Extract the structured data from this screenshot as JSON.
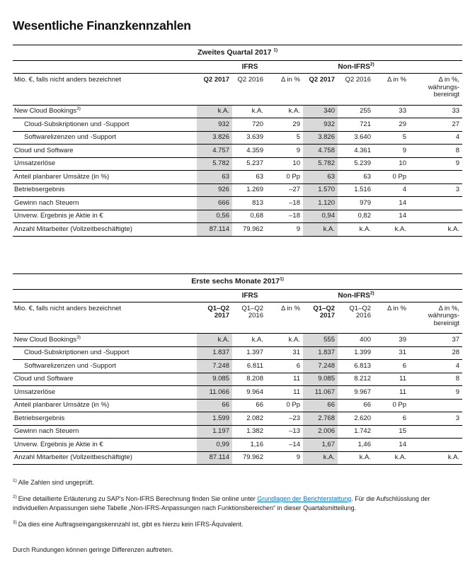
{
  "page_title": "Wesentliche Finanzkennzahlen",
  "colors": {
    "link_blue": "#0076cb",
    "shaded_column": "#d9d9d9"
  },
  "tables": [
    {
      "title": "Zweites Quartal 2017 ",
      "title_sup": "1)",
      "groups": {
        "ifrs": "IFRS",
        "non_ifrs": "Non-IFRS",
        "non_ifrs_sup": "2)"
      },
      "unit_label": "Mio. €, falls nicht anders bezeichnet",
      "columns": [
        {
          "lines": [
            "Q2 2017"
          ],
          "bold": true
        },
        {
          "lines": [
            "Q2 2016"
          ]
        },
        {
          "lines": [
            "Δ in %"
          ]
        },
        {
          "lines": [
            "Q2 2017"
          ],
          "bold": true
        },
        {
          "lines": [
            "Q2 2016"
          ]
        },
        {
          "lines": [
            "Δ in %"
          ]
        },
        {
          "lines": [
            "Δ in %,",
            "währungs-",
            "bereinigt"
          ]
        }
      ],
      "rows": [
        {
          "label": "New Cloud Bookings",
          "sup": "3)",
          "values": [
            "k.A.",
            "k.A.",
            "k.A.",
            "340",
            "255",
            "33",
            "33"
          ]
        },
        {
          "label": "Cloud-Subskriptionen und -Support",
          "indent": true,
          "values": [
            "932",
            "720",
            "29",
            "932",
            "721",
            "29",
            "27"
          ]
        },
        {
          "label": "Softwarelizenzen und -Support",
          "indent": true,
          "values": [
            "3.826",
            "3.639",
            "5",
            "3.826",
            "3.640",
            "5",
            "4"
          ]
        },
        {
          "label": "Cloud und Software",
          "values": [
            "4.757",
            "4.359",
            "9",
            "4.758",
            "4.361",
            "9",
            "8"
          ]
        },
        {
          "label": "Umsatzerlöse",
          "values": [
            "5.782",
            "5.237",
            "10",
            "5.782",
            "5.239",
            "10",
            "9"
          ]
        },
        {
          "label": "Anteil planbarer Umsätze (in %)",
          "values": [
            "63",
            "63",
            "0 Pp",
            "63",
            "63",
            "0 Pp",
            ""
          ]
        },
        {
          "label": "Betriebsergebnis",
          "values": [
            "926",
            "1.269",
            "–27",
            "1.570",
            "1.516",
            "4",
            "3"
          ]
        },
        {
          "label": "Gewinn nach Steuern",
          "values": [
            "666",
            "813",
            "–18",
            "1.120",
            "979",
            "14",
            ""
          ]
        },
        {
          "label": "Unverw. Ergebnis je Aktie in €",
          "values": [
            "0,56",
            "0,68",
            "–18",
            "0,94",
            "0,82",
            "14",
            ""
          ]
        },
        {
          "label": "Anzahl Mitarbeiter (Vollzeitbeschäftigte)",
          "values": [
            "87.114",
            "79.962",
            "9",
            "k.A.",
            "k.A.",
            "k.A.",
            "k.A."
          ]
        }
      ]
    },
    {
      "title": "Erste sechs Monate 2017",
      "title_sup": "1)",
      "groups": {
        "ifrs": "IFRS",
        "non_ifrs": "Non-IFRS",
        "non_ifrs_sup": "2)"
      },
      "unit_label": "Mio. €, falls nicht anders bezeichnet",
      "columns": [
        {
          "lines": [
            "Q1–Q2",
            "2017"
          ],
          "bold": true
        },
        {
          "lines": [
            "Q1–Q2",
            "2016"
          ]
        },
        {
          "lines": [
            "Δ in %"
          ]
        },
        {
          "lines": [
            "Q1–Q2",
            "2017"
          ],
          "bold": true
        },
        {
          "lines": [
            "Q1–Q2",
            "2016"
          ]
        },
        {
          "lines": [
            "Δ in %"
          ]
        },
        {
          "lines": [
            "Δ in %,",
            "währungs-",
            "bereinigt"
          ]
        }
      ],
      "rows": [
        {
          "label": "New Cloud Bookings",
          "sup": "3)",
          "values": [
            "k.A.",
            "k.A.",
            "k.A.",
            "555",
            "400",
            "39",
            "37"
          ]
        },
        {
          "label": "Cloud-Subskriptionen und -Support",
          "indent": true,
          "values": [
            "1.837",
            "1.397",
            "31",
            "1.837",
            "1.399",
            "31",
            "28"
          ]
        },
        {
          "label": "Softwarelizenzen und -Support",
          "indent": true,
          "values": [
            "7.248",
            "6.811",
            "6",
            "7.248",
            "6.813",
            "6",
            "4"
          ]
        },
        {
          "label": "Cloud und Software",
          "values": [
            "9.085",
            "8.208",
            "11",
            "9.085",
            "8.212",
            "11",
            "8"
          ]
        },
        {
          "label": "Umsatzerlöse",
          "values": [
            "11.066",
            "9.964",
            "11",
            "11.067",
            "9.967",
            "11",
            "9"
          ]
        },
        {
          "label": "Anteil planbarer Umsätze (in %)",
          "values": [
            "66",
            "66",
            "0 Pp",
            "66",
            "66",
            "0 Pp",
            ""
          ]
        },
        {
          "label": "Betriebsergebnis",
          "values": [
            "1.599",
            "2.082",
            "–23",
            "2.768",
            "2.620",
            "6",
            "3"
          ]
        },
        {
          "label": "Gewinn nach Steuern",
          "values": [
            "1.197",
            "1.382",
            "–13",
            "2.006",
            "1.742",
            "15",
            ""
          ]
        },
        {
          "label": "Unverw. Ergebnis je Aktie in €",
          "values": [
            "0,99",
            "1,16",
            "–14",
            "1,67",
            "1,46",
            "14",
            ""
          ]
        },
        {
          "label": "Anzahl Mitarbeiter (Vollzeitbeschäftigte)",
          "values": [
            "87.114",
            "79.962",
            "9",
            "k.A.",
            "k.A.",
            "k.A.",
            "k.A."
          ]
        }
      ]
    }
  ],
  "footnotes": [
    {
      "sup": "1)",
      "parts": [
        {
          "text": "Alle Zahlen sind ungeprüft."
        }
      ]
    },
    {
      "sup": "2)",
      "parts": [
        {
          "text": "Eine detaillierte Erläuterung zu SAP's Non-IFRS Berechnung finden Sie online unter "
        },
        {
          "text": "Grundlagen der Berichterstattung",
          "link": true
        },
        {
          "text": ". Für die Aufschlüsslung der individuellen Anpassungen siehe Tabelle „Non-IFRS-Anpassungen nach Funktionsbereichen“ in dieser Quartalsmitteilung."
        }
      ]
    },
    {
      "sup": "3)",
      "parts": [
        {
          "text": "Da dies eine Auftragseingangskennzahl ist, gibt es hierzu kein IFRS-Äquivalent."
        }
      ]
    }
  ],
  "closing_note": "Durch Rundungen können geringe Differenzen auftreten."
}
